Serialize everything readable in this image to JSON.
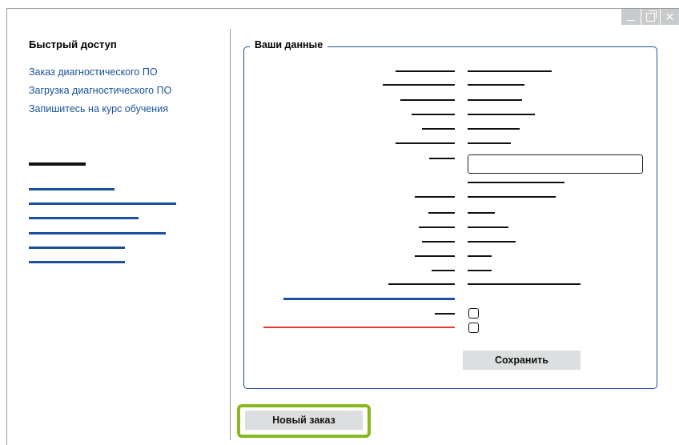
{
  "sidebar": {
    "title": "Быстрый доступ",
    "links": [
      "Заказ диагностического ПО",
      "Загрузка диагностического ПО",
      "Запишитесь на курс обучения"
    ]
  },
  "form": {
    "group_title": "Ваши данные",
    "save_label": "Сохранить"
  },
  "actions": {
    "new_order_label": "Новый заказ"
  },
  "colors": {
    "link_blue": "#17529b",
    "frame_blue": "#1b4fa0",
    "highlight_green": "#8ab91f",
    "error_red": "#e23b2e",
    "button_gray": "#dcdedf"
  }
}
